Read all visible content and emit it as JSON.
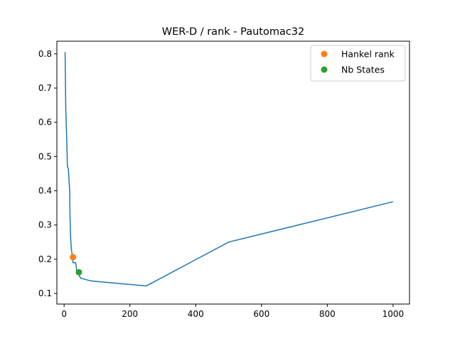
{
  "chart_data": {
    "type": "line",
    "title": "WER-D / rank - Pautomac32",
    "xlabel": "",
    "ylabel": "",
    "xlim": [
      -22,
      1050
    ],
    "ylim": [
      0.069,
      0.837
    ],
    "xticks": [
      0,
      200,
      400,
      600,
      800,
      1000
    ],
    "yticks": [
      0.1,
      0.2,
      0.3,
      0.4,
      0.5,
      0.6,
      0.7,
      0.8
    ],
    "grid": false,
    "legend_position": "top-right",
    "series": [
      {
        "name": "",
        "kind": "line",
        "color": "#1f77b4",
        "x": [
          3,
          5,
          8,
          10,
          13,
          15,
          17,
          18,
          20,
          22,
          25,
          27,
          30,
          35,
          38,
          40,
          45,
          50,
          60,
          80,
          100,
          250,
          500,
          1000
        ],
        "y": [
          0.805,
          0.64,
          0.55,
          0.47,
          0.465,
          0.43,
          0.4,
          0.32,
          0.26,
          0.23,
          0.21,
          0.19,
          0.19,
          0.19,
          0.17,
          0.16,
          0.155,
          0.145,
          0.142,
          0.137,
          0.135,
          0.122,
          0.25,
          0.368
        ]
      },
      {
        "name": "Hankel rank",
        "kind": "point",
        "color": "#ff7f0e",
        "x": [
          27
        ],
        "y": [
          0.206
        ]
      },
      {
        "name": "Nb States",
        "kind": "point",
        "color": "#2ca02c",
        "x": [
          45
        ],
        "y": [
          0.162
        ]
      }
    ]
  }
}
